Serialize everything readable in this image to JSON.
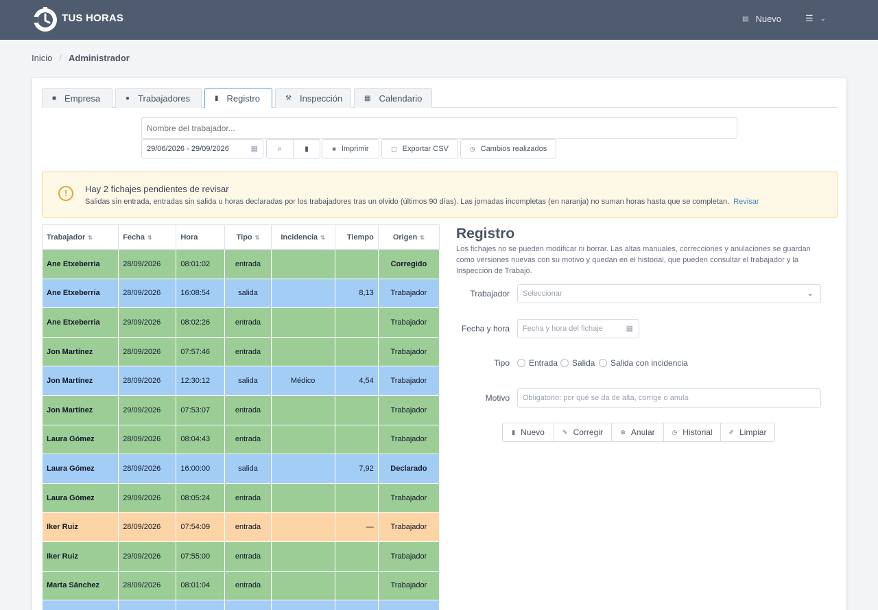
{
  "header": {
    "brand": "TUS HORAS",
    "nuevo_label": "Nuevo"
  },
  "breadcrumb": {
    "home": "Inicio",
    "current": "Administrador"
  },
  "tabs": [
    {
      "label": "Empresa",
      "icon": "briefcase-icon"
    },
    {
      "label": "Trabajadores",
      "icon": "users-icon"
    },
    {
      "label": "Registro",
      "icon": "document-icon",
      "active": true
    },
    {
      "label": "Inspección",
      "icon": "gavel-icon"
    },
    {
      "label": "Calendario",
      "icon": "calendar-icon"
    }
  ],
  "search": {
    "placeholder": "Nombre del trabajador...",
    "date_range": "29/06/2026 - 29/09/2026"
  },
  "actions": {
    "print": "Imprimir",
    "export": "Exportar CSV",
    "changes": "Cambios realizados"
  },
  "alert": {
    "title": "Hay 2 fichajes pendientes de revisar",
    "text": "Salidas sin entrada, entradas sin salida u horas declaradas por los trabajadores tras un olvido (últimos 90 días). Las jornadas incompletas (en naranja) no suman horas hasta que se completan.",
    "link": "Revisar",
    "color": "#e8a32b"
  },
  "table": {
    "columns": [
      "Trabajador",
      "Fecha",
      "Hora",
      "Tipo",
      "Incidencia",
      "Tiempo",
      "Origen"
    ],
    "rows": [
      {
        "trabajador": "Ane Etxeberria",
        "fecha": "28/09/2026",
        "hora": "08:01:02",
        "tipo": "entrada",
        "incidencia": "",
        "tiempo": "",
        "origen": "Corregido",
        "color": "green",
        "origen_bold": true
      },
      {
        "trabajador": "Ane Etxeberria",
        "fecha": "28/09/2026",
        "hora": "16:08:54",
        "tipo": "salida",
        "incidencia": "",
        "tiempo": "8,13",
        "origen": "Trabajador",
        "color": "blue",
        "origen_bold": false
      },
      {
        "trabajador": "Ane Etxeberria",
        "fecha": "29/09/2026",
        "hora": "08:02:26",
        "tipo": "entrada",
        "incidencia": "",
        "tiempo": "",
        "origen": "Trabajador",
        "color": "green",
        "origen_bold": false
      },
      {
        "trabajador": "Jon Martínez",
        "fecha": "28/09/2026",
        "hora": "07:57:46",
        "tipo": "entrada",
        "incidencia": "",
        "tiempo": "",
        "origen": "Trabajador",
        "color": "green",
        "origen_bold": false
      },
      {
        "trabajador": "Jon Martínez",
        "fecha": "28/09/2026",
        "hora": "12:30:12",
        "tipo": "salida",
        "incidencia": "Médico",
        "tiempo": "4,54",
        "origen": "Trabajador",
        "color": "blue",
        "origen_bold": false
      },
      {
        "trabajador": "Jon Martínez",
        "fecha": "29/09/2026",
        "hora": "07:53:07",
        "tipo": "entrada",
        "incidencia": "",
        "tiempo": "",
        "origen": "Trabajador",
        "color": "green",
        "origen_bold": false
      },
      {
        "trabajador": "Laura Gómez",
        "fecha": "28/09/2026",
        "hora": "08:04:43",
        "tipo": "entrada",
        "incidencia": "",
        "tiempo": "",
        "origen": "Trabajador",
        "color": "green",
        "origen_bold": false
      },
      {
        "trabajador": "Laura Gómez",
        "fecha": "28/09/2026",
        "hora": "16:00:00",
        "tipo": "salida",
        "incidencia": "",
        "tiempo": "7,92",
        "origen": "Declarado",
        "color": "blue",
        "origen_bold": true
      },
      {
        "trabajador": "Laura Gómez",
        "fecha": "29/09/2026",
        "hora": "08:05:24",
        "tipo": "entrada",
        "incidencia": "",
        "tiempo": "",
        "origen": "Trabajador",
        "color": "green",
        "origen_bold": false
      },
      {
        "trabajador": "Iker Ruiz",
        "fecha": "28/09/2026",
        "hora": "07:54:09",
        "tipo": "entrada",
        "incidencia": "",
        "tiempo": "—",
        "origen": "Trabajador",
        "color": "orange",
        "origen_bold": false
      },
      {
        "trabajador": "Iker Ruiz",
        "fecha": "29/09/2026",
        "hora": "07:55:00",
        "tipo": "entrada",
        "incidencia": "",
        "tiempo": "",
        "origen": "Trabajador",
        "color": "green",
        "origen_bold": false
      },
      {
        "trabajador": "Marta Sánchez",
        "fecha": "28/09/2026",
        "hora": "08:01:04",
        "tipo": "entrada",
        "incidencia": "",
        "tiempo": "",
        "origen": "Trabajador",
        "color": "green",
        "origen_bold": false
      },
      {
        "trabajador": "",
        "fecha": "",
        "hora": "",
        "tipo": "",
        "incidencia": "",
        "tiempo": "",
        "origen": "",
        "color": "blue",
        "origen_bold": false
      }
    ],
    "row_colors": {
      "green": "#9ccd97",
      "blue": "#a4cdf5",
      "orange": "#fdd4a6"
    }
  },
  "registro": {
    "title": "Registro",
    "description": "Los fichajes no se pueden modificar ni borrar. Las altas manuales, correcciones y anulaciones se guardan como versiones nuevas con su motivo y quedan en el historial, que pueden consultar el trabajador y la Inspección de Trabajo.",
    "trabajador_label": "Trabajador",
    "trabajador_placeholder": "Seleccionar",
    "fecha_label": "Fecha y hora",
    "fecha_placeholder": "Fecha y hora del fichaje",
    "tipo_label": "Tipo",
    "tipo_options": [
      "Entrada",
      "Salida",
      "Salida con incidencia"
    ],
    "motivo_label": "Motivo",
    "motivo_placeholder": "Obligatorio: por qué se da de alta, corrige o anula",
    "buttons": [
      "Nuevo",
      "Corregir",
      "Anular",
      "Historial",
      "Limpiar"
    ]
  }
}
